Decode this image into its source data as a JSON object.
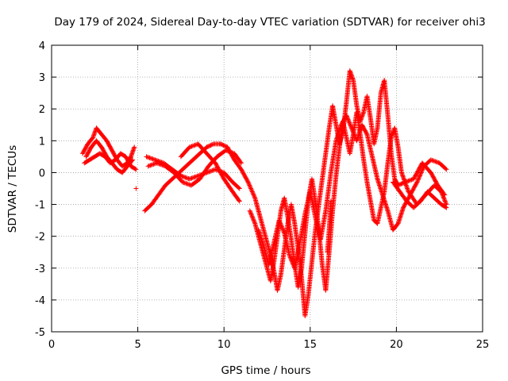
{
  "chart_data": {
    "type": "scatter",
    "title": "Day 179 of 2024, Sidereal Day-to-day VTEC variation (SDTVAR) for receiver ohi3",
    "xlabel": "GPS time / hours",
    "ylabel": "SDTVAR / TECUs",
    "xlim": [
      0,
      25
    ],
    "ylim": [
      -5,
      4
    ],
    "xticks": [
      "0",
      "5",
      "10",
      "15",
      "20",
      "25"
    ],
    "yticks": [
      "-5",
      "-4",
      "-3",
      "-2",
      "-1",
      "0",
      "1",
      "2",
      "3",
      "4"
    ],
    "grid": true,
    "legend": "none",
    "marker": "+",
    "color": "#ff0000",
    "series": [
      {
        "tracks": [
          [
            [
              1.8,
              0.6
            ],
            [
              2.1,
              0.9
            ],
            [
              2.4,
              1.1
            ],
            [
              2.6,
              1.4
            ],
            [
              2.9,
              1.2
            ],
            [
              3.2,
              1.0
            ],
            [
              3.5,
              0.7
            ],
            [
              3.8,
              0.4
            ],
            [
              4.1,
              0.2
            ],
            [
              4.4,
              0.3
            ],
            [
              4.6,
              0.5
            ],
            [
              4.8,
              0.8
            ]
          ],
          [
            [
              1.9,
              0.3
            ],
            [
              2.2,
              0.4
            ],
            [
              2.5,
              0.5
            ],
            [
              2.8,
              0.6
            ],
            [
              3.1,
              0.5
            ],
            [
              3.4,
              0.3
            ],
            [
              3.7,
              0.4
            ],
            [
              4.0,
              0.6
            ],
            [
              4.3,
              0.5
            ],
            [
              4.6,
              0.2
            ],
            [
              4.9,
              0.1
            ]
          ],
          [
            [
              2.0,
              0.5
            ],
            [
              2.3,
              0.8
            ],
            [
              2.6,
              1.0
            ],
            [
              2.9,
              0.8
            ],
            [
              3.2,
              0.5
            ],
            [
              3.5,
              0.3
            ],
            [
              3.8,
              0.1
            ],
            [
              4.1,
              0.0
            ],
            [
              4.4,
              0.2
            ],
            [
              4.7,
              0.4
            ]
          ],
          [
            [
              5.4,
              -1.2
            ],
            [
              5.8,
              -1.0
            ],
            [
              6.2,
              -0.7
            ],
            [
              6.6,
              -0.4
            ],
            [
              7.0,
              -0.2
            ],
            [
              7.4,
              0.0
            ],
            [
              7.8,
              0.2
            ],
            [
              8.2,
              0.4
            ],
            [
              8.6,
              0.6
            ],
            [
              9.0,
              0.8
            ],
            [
              9.4,
              0.9
            ],
            [
              9.8,
              0.9
            ]
          ],
          [
            [
              5.5,
              0.5
            ],
            [
              6.0,
              0.4
            ],
            [
              6.5,
              0.3
            ],
            [
              7.0,
              0.1
            ],
            [
              7.5,
              -0.1
            ],
            [
              8.0,
              -0.2
            ],
            [
              8.5,
              -0.1
            ],
            [
              9.0,
              0.0
            ],
            [
              9.5,
              0.1
            ],
            [
              10.0,
              0.0
            ],
            [
              10.5,
              -0.3
            ],
            [
              10.9,
              -0.5
            ]
          ],
          [
            [
              5.6,
              0.2
            ],
            [
              6.1,
              0.3
            ],
            [
              6.6,
              0.2
            ],
            [
              7.1,
              0.0
            ],
            [
              7.6,
              -0.3
            ],
            [
              8.1,
              -0.4
            ],
            [
              8.6,
              -0.2
            ],
            [
              9.1,
              0.2
            ],
            [
              9.6,
              0.5
            ],
            [
              10.1,
              0.7
            ],
            [
              10.6,
              0.6
            ],
            [
              11.0,
              0.3
            ]
          ],
          [
            [
              7.5,
              0.5
            ],
            [
              8.0,
              0.8
            ],
            [
              8.5,
              0.9
            ],
            [
              9.0,
              0.6
            ],
            [
              9.5,
              0.3
            ],
            [
              10.0,
              -0.2
            ],
            [
              10.5,
              -0.6
            ],
            [
              10.9,
              -0.9
            ]
          ],
          [
            [
              9.8,
              0.9
            ],
            [
              10.2,
              0.8
            ],
            [
              10.6,
              0.4
            ],
            [
              11.0,
              0.1
            ],
            [
              11.4,
              -0.3
            ],
            [
              11.8,
              -0.8
            ],
            [
              12.1,
              -1.4
            ],
            [
              12.4,
              -2.0
            ],
            [
              12.7,
              -2.6
            ],
            [
              12.9,
              -3.1
            ],
            [
              13.1,
              -3.7
            ],
            [
              13.3,
              -3.2
            ],
            [
              13.5,
              -2.4
            ],
            [
              13.7,
              -1.6
            ],
            [
              13.9,
              -1.0
            ],
            [
              14.1,
              -1.6
            ],
            [
              14.3,
              -2.4
            ],
            [
              14.5,
              -3.3
            ],
            [
              14.7,
              -4.5
            ],
            [
              14.9,
              -3.8
            ],
            [
              15.1,
              -2.8
            ],
            [
              15.3,
              -1.8
            ],
            [
              15.5,
              -1.0
            ],
            [
              15.7,
              -0.2
            ],
            [
              15.9,
              0.6
            ],
            [
              16.1,
              1.4
            ],
            [
              16.3,
              2.1
            ],
            [
              16.5,
              1.5
            ],
            [
              16.7,
              0.9
            ],
            [
              16.9,
              1.3
            ],
            [
              17.1,
              2.2
            ],
            [
              17.3,
              3.2
            ],
            [
              17.5,
              2.9
            ],
            [
              17.7,
              2.1
            ],
            [
              17.9,
              1.6
            ],
            [
              18.1,
              1.9
            ],
            [
              18.3,
              2.4
            ],
            [
              18.5,
              1.7
            ],
            [
              18.7,
              0.9
            ],
            [
              18.9,
              1.4
            ],
            [
              19.1,
              2.5
            ],
            [
              19.3,
              2.9
            ],
            [
              19.5,
              1.8
            ],
            [
              19.7,
              0.6
            ],
            [
              19.9,
              -0.2
            ],
            [
              20.1,
              -0.4
            ],
            [
              20.5,
              -0.3
            ],
            [
              21.0,
              -0.2
            ],
            [
              21.5,
              0.3
            ],
            [
              22.0,
              0.0
            ],
            [
              22.4,
              -0.4
            ],
            [
              22.8,
              -0.7
            ]
          ],
          [
            [
              11.5,
              -1.2
            ],
            [
              11.8,
              -1.6
            ],
            [
              12.1,
              -2.2
            ],
            [
              12.4,
              -2.8
            ],
            [
              12.7,
              -3.4
            ],
            [
              12.9,
              -2.8
            ],
            [
              13.1,
              -2.0
            ],
            [
              13.3,
              -1.2
            ],
            [
              13.5,
              -0.8
            ],
            [
              13.7,
              -1.4
            ],
            [
              13.9,
              -2.1
            ],
            [
              14.1,
              -2.9
            ],
            [
              14.3,
              -3.6
            ],
            [
              14.5,
              -3.0
            ],
            [
              14.7,
              -1.9
            ],
            [
              14.9,
              -0.8
            ],
            [
              15.1,
              -0.2
            ],
            [
              15.3,
              -0.9
            ],
            [
              15.5,
              -1.8
            ],
            [
              15.7,
              -2.9
            ],
            [
              15.9,
              -3.7
            ],
            [
              16.1,
              -2.5
            ],
            [
              16.3,
              -1.2
            ],
            [
              16.5,
              -0.1
            ],
            [
              16.7,
              0.8
            ],
            [
              16.9,
              1.6
            ],
            [
              17.1,
              1.1
            ],
            [
              17.3,
              0.6
            ],
            [
              17.5,
              1.2
            ],
            [
              17.7,
              1.9
            ],
            [
              17.9,
              1.2
            ],
            [
              18.1,
              0.4
            ],
            [
              18.3,
              -0.3
            ],
            [
              18.5,
              -0.9
            ],
            [
              18.7,
              -1.5
            ],
            [
              18.9,
              -1.6
            ],
            [
              19.1,
              -1.1
            ],
            [
              19.3,
              -0.6
            ],
            [
              19.5,
              0.3
            ],
            [
              19.7,
              1.1
            ],
            [
              19.9,
              1.4
            ],
            [
              20.1,
              0.8
            ],
            [
              20.3,
              0.0
            ],
            [
              20.7,
              -0.6
            ],
            [
              21.2,
              -1.0
            ],
            [
              21.7,
              -0.7
            ],
            [
              22.2,
              -0.4
            ],
            [
              22.6,
              -0.6
            ],
            [
              22.9,
              -1.0
            ]
          ],
          [
            [
              12.0,
              -1.8
            ],
            [
              12.3,
              -2.3
            ],
            [
              12.6,
              -2.9
            ],
            [
              12.9,
              -2.2
            ],
            [
              13.2,
              -1.5
            ],
            [
              13.5,
              -1.9
            ],
            [
              13.8,
              -2.6
            ],
            [
              14.1,
              -3.0
            ],
            [
              14.4,
              -2.2
            ],
            [
              14.7,
              -1.3
            ],
            [
              15.0,
              -0.6
            ],
            [
              15.3,
              -1.4
            ],
            [
              15.6,
              -2.1
            ],
            [
              15.9,
              -1.2
            ],
            [
              16.2,
              0.0
            ],
            [
              16.5,
              1.0
            ],
            [
              16.8,
              1.5
            ],
            [
              17.1,
              1.8
            ],
            [
              17.4,
              1.4
            ],
            [
              17.7,
              1.0
            ],
            [
              18.0,
              1.5
            ],
            [
              18.3,
              1.2
            ],
            [
              18.6,
              0.5
            ],
            [
              18.9,
              -0.2
            ],
            [
              19.2,
              -0.7
            ],
            [
              19.5,
              -1.2
            ],
            [
              19.8,
              -1.8
            ],
            [
              20.1,
              -1.6
            ],
            [
              20.4,
              -1.1
            ],
            [
              20.8,
              -0.7
            ],
            [
              21.2,
              -0.3
            ],
            [
              21.6,
              0.2
            ],
            [
              22.0,
              0.4
            ],
            [
              22.5,
              0.3
            ],
            [
              22.9,
              0.1
            ]
          ],
          [
            [
              19.8,
              -0.3
            ],
            [
              20.2,
              -0.6
            ],
            [
              20.6,
              -0.9
            ],
            [
              21.0,
              -1.1
            ],
            [
              21.4,
              -0.9
            ],
            [
              21.8,
              -0.6
            ],
            [
              22.2,
              -0.8
            ],
            [
              22.6,
              -1.0
            ],
            [
              22.9,
              -1.1
            ]
          ],
          [
            [
              16.0,
              -2.5
            ],
            [
              16.1,
              -1.8
            ],
            [
              16.2,
              -0.9
            ]
          ]
        ],
        "points": [
          [
            4.9,
            -0.5
          ]
        ]
      }
    ]
  }
}
